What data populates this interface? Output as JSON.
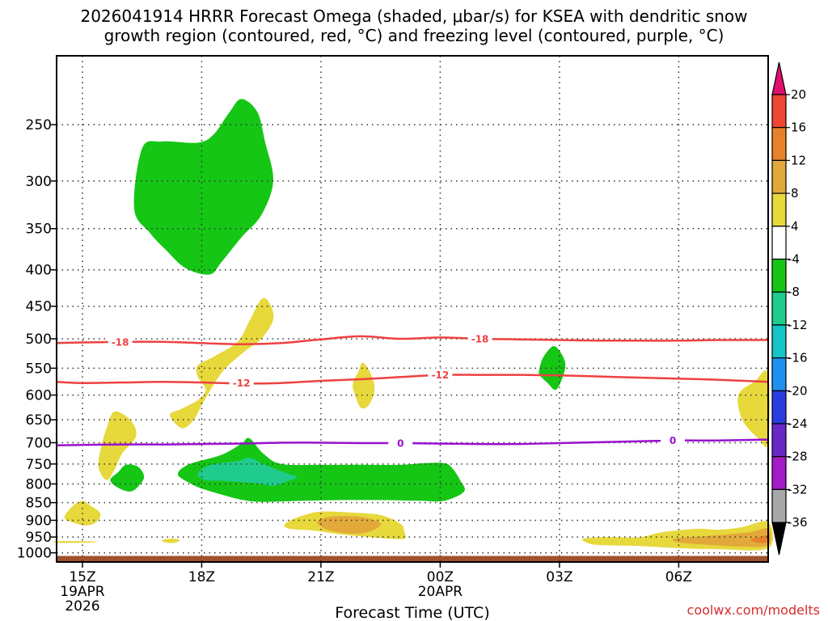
{
  "chart_data": {
    "type": "heatmap",
    "title_line1": "2026041914 HRRR Forecast Omega (shaded, μbar/s) for KSEA with dendritic snow",
    "title_line2": "growth region (contoured, red, °C) and freezing level (contoured, purple, °C)",
    "xlabel": "Forecast Time (UTC)",
    "credit": "coolwx.com/modelts",
    "x_range_hours": [
      14.35,
      32.25
    ],
    "x_ticks": [
      {
        "hour": 15,
        "label": "15Z",
        "sub1": "19APR",
        "sub2": "2026"
      },
      {
        "hour": 18,
        "label": "18Z",
        "sub1": "",
        "sub2": ""
      },
      {
        "hour": 21,
        "label": "21Z",
        "sub1": "",
        "sub2": ""
      },
      {
        "hour": 24,
        "label": "00Z",
        "sub1": "20APR",
        "sub2": ""
      },
      {
        "hour": 27,
        "label": "03Z",
        "sub1": "",
        "sub2": ""
      },
      {
        "hour": 30,
        "label": "06Z",
        "sub1": "",
        "sub2": ""
      }
    ],
    "y_axis": "pressure_hPa_log",
    "y_range_hPa": [
      200,
      1030
    ],
    "y_ticks": [
      250,
      300,
      350,
      400,
      450,
      500,
      550,
      600,
      650,
      700,
      750,
      800,
      850,
      900,
      950,
      1000
    ],
    "ground_level_hPa": 1010,
    "colorbar": {
      "labels": [
        "20",
        "16",
        "12",
        "8",
        "4",
        "-4",
        "-8",
        "-12",
        "-16",
        "-20",
        "-24",
        "-28",
        "-32",
        "-36"
      ],
      "bins": [
        {
          "lo": 20,
          "hi": null,
          "color": "#e0106f"
        },
        {
          "lo": 16,
          "hi": 20,
          "color": "#ef4636"
        },
        {
          "lo": 12,
          "hi": 16,
          "color": "#e8822a"
        },
        {
          "lo": 8,
          "hi": 12,
          "color": "#e2a93a"
        },
        {
          "lo": 4,
          "hi": 8,
          "color": "#e7d83c"
        },
        {
          "lo": -4,
          "hi": 4,
          "color": "#ffffff"
        },
        {
          "lo": -8,
          "hi": -4,
          "color": "#15c615"
        },
        {
          "lo": -12,
          "hi": -8,
          "color": "#1fcc8e"
        },
        {
          "lo": -16,
          "hi": -12,
          "color": "#15c4c4"
        },
        {
          "lo": -20,
          "hi": -16,
          "color": "#1e90f0"
        },
        {
          "lo": -24,
          "hi": -20,
          "color": "#2a3ee0"
        },
        {
          "lo": -28,
          "hi": -24,
          "color": "#6a28c8"
        },
        {
          "lo": -32,
          "hi": -28,
          "color": "#a41cc8"
        },
        {
          "lo": -36,
          "hi": -32,
          "color": "#a8a8a8"
        },
        {
          "lo": null,
          "hi": -36,
          "color": "#000000"
        }
      ]
    },
    "contours": [
      {
        "name": "dgz-minus18",
        "value": -18,
        "label": "-18",
        "color": "#ef4040",
        "points": [
          [
            14.35,
            507
          ],
          [
            15,
            506
          ],
          [
            16,
            505
          ],
          [
            17,
            505
          ],
          [
            18,
            507
          ],
          [
            19,
            509
          ],
          [
            20,
            507
          ],
          [
            21,
            501
          ],
          [
            22,
            496
          ],
          [
            23,
            500
          ],
          [
            24,
            498
          ],
          [
            25,
            500
          ],
          [
            26,
            501
          ],
          [
            27,
            502
          ],
          [
            28,
            503
          ],
          [
            29,
            503
          ],
          [
            30,
            503
          ],
          [
            31,
            502
          ],
          [
            32.25,
            502
          ]
        ],
        "label_at": [
          [
            15.95,
            505
          ],
          [
            25.0,
            500
          ]
        ]
      },
      {
        "name": "dgz-minus12",
        "value": -12,
        "label": "-12",
        "color": "#ef4040",
        "points": [
          [
            14.35,
            575
          ],
          [
            15,
            577
          ],
          [
            16,
            576
          ],
          [
            17,
            575
          ],
          [
            18,
            576
          ],
          [
            19,
            578
          ],
          [
            20,
            577
          ],
          [
            21,
            573
          ],
          [
            22,
            570
          ],
          [
            23,
            566
          ],
          [
            24,
            562
          ],
          [
            25,
            562
          ],
          [
            26,
            562
          ],
          [
            27,
            563
          ],
          [
            28,
            565
          ],
          [
            29,
            567
          ],
          [
            30,
            569
          ],
          [
            31,
            571
          ],
          [
            32.25,
            575
          ]
        ],
        "label_at": [
          [
            19.0,
            577
          ],
          [
            24.0,
            562
          ]
        ]
      },
      {
        "name": "freezing-level",
        "value": 0,
        "label": "0",
        "color": "#9a10d0",
        "points": [
          [
            14.35,
            706
          ],
          [
            15,
            705
          ],
          [
            16,
            704
          ],
          [
            17,
            704
          ],
          [
            18,
            703
          ],
          [
            19,
            702
          ],
          [
            20,
            700
          ],
          [
            21,
            700
          ],
          [
            22,
            701
          ],
          [
            23,
            701
          ],
          [
            24,
            702
          ],
          [
            25,
            703
          ],
          [
            26,
            703
          ],
          [
            27,
            701
          ],
          [
            28,
            699
          ],
          [
            29,
            697
          ],
          [
            30,
            695
          ],
          [
            31,
            695
          ],
          [
            32.25,
            693
          ]
        ],
        "label_at": [
          [
            23.0,
            701
          ],
          [
            29.85,
            695
          ]
        ]
      }
    ],
    "regions": [
      {
        "color": "#15c615",
        "points": [
          [
            16.3,
            328
          ],
          [
            16.5,
            270
          ],
          [
            17.0,
            264
          ],
          [
            17.9,
            265
          ],
          [
            18.3,
            258
          ],
          [
            18.7,
            240
          ],
          [
            19.0,
            230
          ],
          [
            19.4,
            240
          ],
          [
            19.6,
            265
          ],
          [
            19.8,
            300
          ],
          [
            19.5,
            335
          ],
          [
            19.0,
            360
          ],
          [
            18.5,
            390
          ],
          [
            18.2,
            406
          ],
          [
            17.6,
            398
          ],
          [
            17.1,
            375
          ],
          [
            16.7,
            355
          ]
        ]
      },
      {
        "color": "#15c615",
        "points": [
          [
            17.4,
            775
          ],
          [
            17.7,
            750
          ],
          [
            18.5,
            728
          ],
          [
            19.0,
            702
          ],
          [
            19.2,
            690
          ],
          [
            19.55,
            725
          ],
          [
            20,
            750
          ],
          [
            21,
            752
          ],
          [
            22,
            752
          ],
          [
            23,
            752
          ],
          [
            23.6,
            748
          ],
          [
            24.1,
            748
          ],
          [
            24.3,
            760
          ],
          [
            24.5,
            790
          ],
          [
            24.6,
            820
          ],
          [
            24.1,
            845
          ],
          [
            23.5,
            845
          ],
          [
            22.5,
            843
          ],
          [
            21.5,
            843
          ],
          [
            20.5,
            845
          ],
          [
            19.5,
            848
          ],
          [
            19.0,
            842
          ],
          [
            18.5,
            828
          ],
          [
            18.0,
            812
          ],
          [
            17.7,
            798
          ]
        ]
      },
      {
        "color": "#1fcc8e",
        "points": [
          [
            17.9,
            775
          ],
          [
            18.2,
            753
          ],
          [
            18.9,
            743
          ],
          [
            19.2,
            735
          ],
          [
            19.5,
            748
          ],
          [
            19.8,
            760
          ],
          [
            20.2,
            775
          ],
          [
            20.4,
            783
          ],
          [
            20.1,
            795
          ],
          [
            19.8,
            805
          ],
          [
            19.5,
            800
          ],
          [
            19.0,
            795
          ],
          [
            18.5,
            792
          ],
          [
            18.1,
            790
          ]
        ]
      },
      {
        "color": "#15c615",
        "points": [
          [
            15.7,
            790
          ],
          [
            15.9,
            770
          ],
          [
            16.1,
            752
          ],
          [
            16.4,
            757
          ],
          [
            16.55,
            782
          ],
          [
            16.4,
            807
          ],
          [
            16.2,
            820
          ],
          [
            15.9,
            810
          ]
        ]
      },
      {
        "color": "#15c615",
        "points": [
          [
            26.5,
            550
          ],
          [
            26.6,
            530
          ],
          [
            26.85,
            512
          ],
          [
            27.05,
            525
          ],
          [
            27.15,
            545
          ],
          [
            27.05,
            572
          ],
          [
            26.9,
            590
          ],
          [
            26.7,
            577
          ],
          [
            26.5,
            562
          ]
        ]
      },
      {
        "color": "#e7d83c",
        "points": [
          [
            17.5,
            627
          ],
          [
            17.9,
            610
          ],
          [
            18.1,
            590
          ],
          [
            17.9,
            565
          ],
          [
            17.9,
            545
          ],
          [
            18.3,
            530
          ],
          [
            18.9,
            505
          ],
          [
            19.2,
            472
          ],
          [
            19.5,
            440
          ],
          [
            19.7,
            445
          ],
          [
            19.8,
            470
          ],
          [
            19.5,
            500
          ],
          [
            19.1,
            520
          ],
          [
            18.6,
            550
          ],
          [
            18.3,
            580
          ],
          [
            18.0,
            620
          ],
          [
            17.8,
            650
          ],
          [
            17.5,
            668
          ],
          [
            17.2,
            640
          ]
        ]
      },
      {
        "color": "#e7d83c",
        "points": [
          [
            15.4,
            755
          ],
          [
            15.5,
            700
          ],
          [
            15.6,
            670
          ],
          [
            15.8,
            633
          ],
          [
            16.2,
            650
          ],
          [
            16.35,
            685
          ],
          [
            16.0,
            725
          ],
          [
            15.8,
            765
          ],
          [
            15.6,
            790
          ]
        ]
      },
      {
        "color": "#e7d83c",
        "points": [
          [
            21.8,
            578
          ],
          [
            21.95,
            555
          ],
          [
            22.05,
            540
          ],
          [
            22.25,
            560
          ],
          [
            22.35,
            590
          ],
          [
            22.2,
            620
          ],
          [
            22.0,
            625
          ],
          [
            21.85,
            598
          ]
        ]
      },
      {
        "color": "#e7d83c",
        "points": [
          [
            14.55,
            892
          ],
          [
            14.75,
            860
          ],
          [
            15.0,
            845
          ],
          [
            15.2,
            858
          ],
          [
            15.45,
            880
          ],
          [
            15.35,
            905
          ],
          [
            15.1,
            915
          ],
          [
            14.8,
            908
          ]
        ]
      },
      {
        "color": "#e7d83c",
        "points": [
          [
            20.1,
            910
          ],
          [
            20.5,
            888
          ],
          [
            21.0,
            875
          ],
          [
            21.8,
            878
          ],
          [
            22.5,
            885
          ],
          [
            23.0,
            910
          ],
          [
            23.1,
            935
          ],
          [
            23.1,
            955
          ],
          [
            22.7,
            955
          ],
          [
            22.0,
            948
          ],
          [
            21.4,
            940
          ],
          [
            20.8,
            930
          ],
          [
            20.2,
            925
          ]
        ]
      },
      {
        "color": "#e2a93a",
        "points": [
          [
            20.9,
            905
          ],
          [
            21.2,
            890
          ],
          [
            21.8,
            888
          ],
          [
            22.2,
            895
          ],
          [
            22.5,
            910
          ],
          [
            22.3,
            930
          ],
          [
            21.9,
            940
          ],
          [
            21.4,
            935
          ],
          [
            21.1,
            925
          ]
        ]
      },
      {
        "color": "#e7d83c",
        "points": [
          [
            31.5,
            600
          ],
          [
            31.9,
            575
          ],
          [
            32.25,
            560
          ],
          [
            32.25,
            700
          ],
          [
            32.0,
            690
          ],
          [
            31.6,
            650
          ]
        ]
      },
      {
        "color": "#e7d83c",
        "points": [
          [
            27.6,
            955
          ],
          [
            28.2,
            950
          ],
          [
            29.0,
            951
          ],
          [
            29.6,
            935
          ],
          [
            30.5,
            925
          ],
          [
            31.0,
            928
          ],
          [
            31.6,
            920
          ],
          [
            32.25,
            905
          ],
          [
            32.25,
            985
          ],
          [
            31.0,
            988
          ],
          [
            30.0,
            985
          ],
          [
            29.0,
            978
          ],
          [
            28.0,
            975
          ],
          [
            27.7,
            968
          ]
        ]
      },
      {
        "color": "#e2a93a",
        "points": [
          [
            29.9,
            955
          ],
          [
            30.6,
            948
          ],
          [
            31.2,
            942
          ],
          [
            31.8,
            935
          ],
          [
            32.25,
            925
          ],
          [
            32.25,
            975
          ],
          [
            31.6,
            980
          ],
          [
            30.8,
            975
          ],
          [
            30.0,
            967
          ]
        ]
      },
      {
        "color": "#e8822a",
        "points": [
          [
            31.8,
            958
          ],
          [
            32.1,
            948
          ],
          [
            32.25,
            944
          ],
          [
            32.25,
            965
          ],
          [
            32.0,
            968
          ]
        ]
      },
      {
        "color": "#e7d83c",
        "points": [
          [
            14.35,
            963
          ],
          [
            15.0,
            963
          ],
          [
            15.4,
            965
          ],
          [
            15.0,
            968
          ],
          [
            14.35,
            968
          ]
        ]
      },
      {
        "color": "#e7d83c",
        "points": [
          [
            17.0,
            960
          ],
          [
            17.25,
            955
          ],
          [
            17.45,
            960
          ],
          [
            17.3,
            968
          ],
          [
            17.1,
            967
          ]
        ]
      }
    ]
  }
}
